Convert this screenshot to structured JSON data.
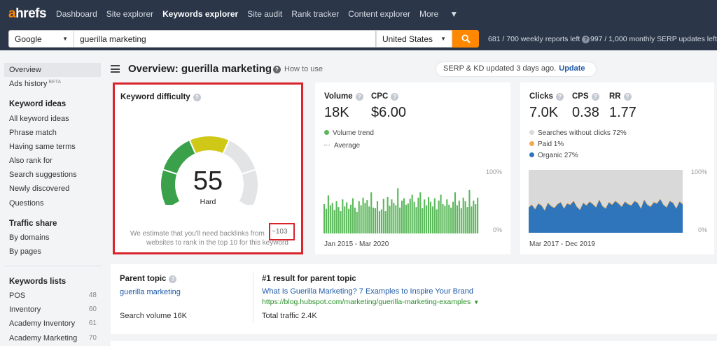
{
  "app": {
    "logo_a": "a",
    "logo_rest": "hrefs"
  },
  "nav": {
    "items": [
      "Dashboard",
      "Site explorer",
      "Keywords explorer",
      "Site audit",
      "Rank tracker",
      "Content explorer",
      "More"
    ],
    "active": "Keywords explorer"
  },
  "search": {
    "engine": "Google",
    "query": "guerilla marketing",
    "country": "United States",
    "reports_left": "681 / 700 weekly reports left",
    "serp_updates_left": "997 / 1,000 monthly SERP updates left"
  },
  "sidebar": {
    "overview": "Overview",
    "ads_history": "Ads history",
    "beta": "BETA",
    "keyword_ideas_head": "Keyword ideas",
    "keyword_ideas": [
      "All keyword ideas",
      "Phrase match",
      "Having same terms",
      "Also rank for",
      "Search suggestions",
      "Newly discovered",
      "Questions"
    ],
    "traffic_share_head": "Traffic share",
    "traffic_share": [
      "By domains",
      "By pages"
    ],
    "keyword_lists_head": "Keywords lists",
    "keyword_lists": [
      {
        "name": "POS",
        "count": "48"
      },
      {
        "name": "Inventory",
        "count": "60"
      },
      {
        "name": "Academy Inventory",
        "count": "61"
      },
      {
        "name": "Academy Marketing",
        "count": "70"
      }
    ]
  },
  "header": {
    "title": "Overview: guerilla marketing",
    "how_to_use": "How to use",
    "serp_status": "SERP & KD updated 3 days ago.",
    "update_link": "Update"
  },
  "kd": {
    "title": "Keyword difficulty",
    "value": "55",
    "score": 55,
    "label": "Hard",
    "note_line1": "We estimate that you'll need backlinks from",
    "backlinks": "~103",
    "note_line2": "websites to rank in the top 10 for this keyword",
    "colors": {
      "green": "#3aa14a",
      "yellow": "#cfc817",
      "gray": "#e3e4e6"
    }
  },
  "volume": {
    "volume_label": "Volume",
    "volume_value": "18K",
    "cpc_label": "CPC",
    "cpc_value": "$6.00",
    "legend_trend": "Volume trend",
    "legend_avg": "Average",
    "pct_top": "100%",
    "pct_bottom": "0%",
    "range": "Jan 2015 - Mar 2020",
    "bar_color": "#5bb85b",
    "bars": [
      50,
      42,
      65,
      48,
      52,
      40,
      55,
      45,
      38,
      58,
      46,
      53,
      42,
      49,
      60,
      44,
      37,
      55,
      48,
      61,
      52,
      57,
      46,
      70,
      44,
      43,
      55,
      38,
      41,
      59,
      38,
      62,
      47,
      58,
      52,
      48,
      77,
      44,
      56,
      60,
      49,
      51,
      59,
      66,
      54,
      45,
      61,
      70,
      43,
      58,
      48,
      62,
      54,
      46,
      60,
      41,
      56,
      66,
      50,
      47,
      58,
      49,
      44,
      54,
      70,
      48,
      56,
      43,
      61,
      55,
      45,
      74,
      46,
      56,
      50,
      61
    ]
  },
  "clicks": {
    "clicks_label": "Clicks",
    "clicks_value": "7.0K",
    "cps_label": "CPS",
    "cps_value": "0.38",
    "rr_label": "RR",
    "rr_value": "1.77",
    "legend_no_clicks": "Searches without clicks 72%",
    "legend_paid": "Paid 1%",
    "legend_organic": "Organic 27%",
    "pct_top": "100%",
    "pct_bottom": "0%",
    "range": "Mar 2017 - Dec 2019",
    "colors": {
      "no_clicks": "#d9d9d9",
      "paid": "#f0a94e",
      "organic": "#2f75bb"
    },
    "organic_series": [
      40,
      44,
      37,
      46,
      43,
      35,
      47,
      42,
      39,
      45,
      48,
      38,
      46,
      44,
      50,
      41,
      36,
      47,
      43,
      49,
      45,
      40,
      52,
      42,
      38,
      48,
      44,
      50,
      46,
      41,
      49,
      45,
      43,
      50,
      47,
      38,
      52,
      44,
      41,
      48,
      46,
      53,
      44,
      40,
      50,
      47,
      38,
      49,
      45
    ]
  },
  "parent": {
    "title": "Parent topic",
    "link": "guerilla marketing",
    "volume": "Search volume 16K",
    "result_title": "#1 result for parent topic",
    "result_link": "What Is Guerilla Marketing? 7 Examples to Inspire Your Brand",
    "result_url": "https://blog.hubspot.com/marketing/guerilla-marketing-examples",
    "result_traffic": "Total traffic 2.4K"
  }
}
